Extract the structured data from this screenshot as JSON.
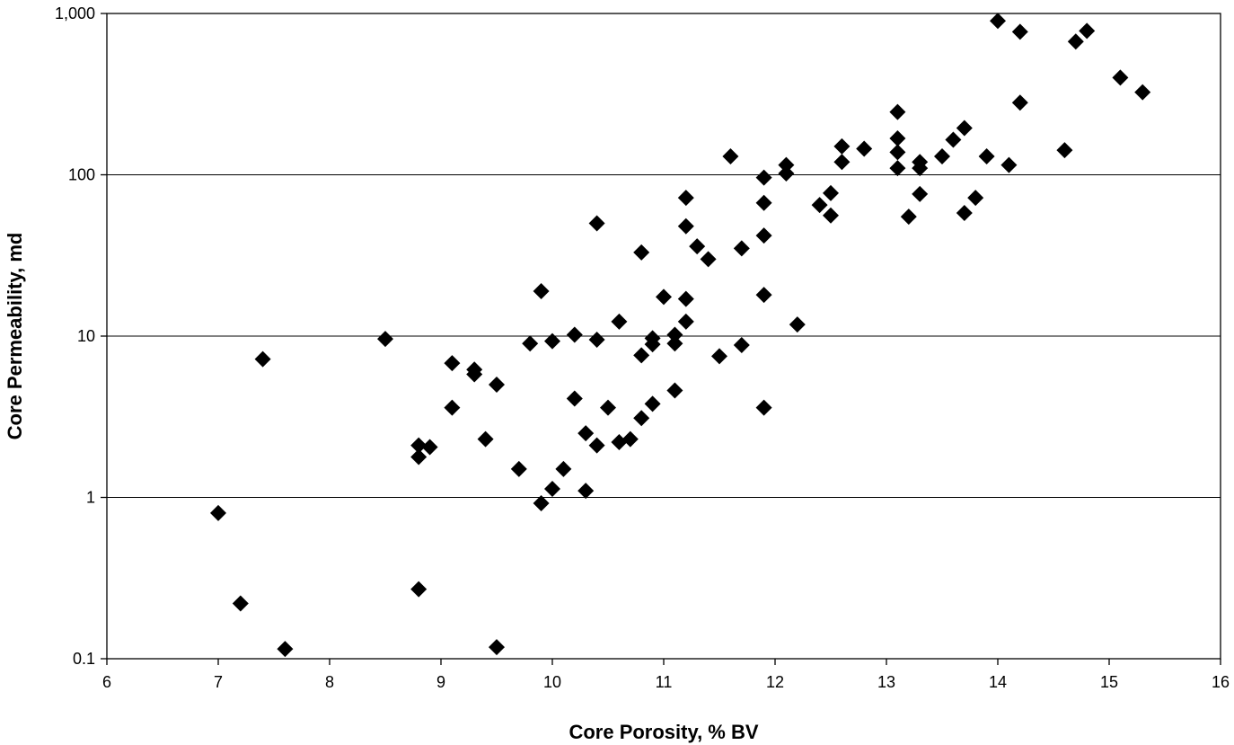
{
  "chart_data": {
    "type": "scatter",
    "title": "",
    "xlabel": "Core Porosity, % BV",
    "ylabel": "Core Permeability, md",
    "xlim": [
      6,
      16
    ],
    "ylim": [
      0.1,
      1000
    ],
    "y_scale": "log",
    "x_ticks": [
      "6",
      "7",
      "8",
      "9",
      "10",
      "11",
      "12",
      "13",
      "14",
      "15",
      "16"
    ],
    "y_ticks": [
      "0.1",
      "1",
      "10",
      "100",
      "1,000"
    ],
    "grid": "horizontal major gridlines",
    "legend": "none",
    "marker": "filled diamond",
    "marker_color": "#000000",
    "series": [
      {
        "points": [
          [
            7.0,
            0.8
          ],
          [
            7.2,
            0.22
          ],
          [
            7.4,
            7.2
          ],
          [
            7.6,
            0.115
          ],
          [
            8.5,
            9.6
          ],
          [
            8.8,
            2.1
          ],
          [
            8.8,
            1.78
          ],
          [
            8.8,
            0.27
          ],
          [
            8.9,
            2.05
          ],
          [
            9.1,
            6.8
          ],
          [
            9.1,
            3.6
          ],
          [
            9.3,
            6.2
          ],
          [
            9.3,
            5.8
          ],
          [
            9.4,
            2.3
          ],
          [
            9.5,
            5.0
          ],
          [
            9.5,
            0.118
          ],
          [
            9.7,
            1.5
          ],
          [
            9.8,
            9.0
          ],
          [
            9.9,
            19.0
          ],
          [
            9.9,
            0.92
          ],
          [
            10.0,
            9.3
          ],
          [
            10.0,
            1.13
          ],
          [
            10.1,
            1.5
          ],
          [
            10.2,
            10.2
          ],
          [
            10.2,
            4.1
          ],
          [
            10.3,
            2.5
          ],
          [
            10.3,
            1.1
          ],
          [
            10.4,
            50.0
          ],
          [
            10.4,
            9.5
          ],
          [
            10.4,
            2.1
          ],
          [
            10.5,
            3.6
          ],
          [
            10.6,
            12.3
          ],
          [
            10.6,
            2.2
          ],
          [
            10.7,
            2.3
          ],
          [
            10.8,
            33.0
          ],
          [
            10.8,
            7.6
          ],
          [
            10.8,
            3.1
          ],
          [
            10.9,
            9.7
          ],
          [
            10.9,
            8.9
          ],
          [
            10.9,
            3.8
          ],
          [
            11.0,
            17.5
          ],
          [
            11.1,
            10.2
          ],
          [
            11.1,
            9.0
          ],
          [
            11.1,
            4.6
          ],
          [
            11.2,
            72.0
          ],
          [
            11.2,
            48.0
          ],
          [
            11.2,
            17.0
          ],
          [
            11.2,
            12.3
          ],
          [
            11.3,
            36.0
          ],
          [
            11.4,
            30.0
          ],
          [
            11.5,
            7.5
          ],
          [
            11.6,
            130.0
          ],
          [
            11.7,
            35.0
          ],
          [
            11.7,
            8.8
          ],
          [
            11.9,
            96.0
          ],
          [
            11.9,
            67.0
          ],
          [
            11.9,
            42.0
          ],
          [
            11.9,
            18.0
          ],
          [
            11.9,
            3.6
          ],
          [
            12.1,
            115.0
          ],
          [
            12.1,
            102.0
          ],
          [
            12.2,
            11.8
          ],
          [
            12.4,
            65.0
          ],
          [
            12.5,
            77.0
          ],
          [
            12.5,
            56.0
          ],
          [
            12.6,
            150.0
          ],
          [
            12.6,
            120.0
          ],
          [
            12.8,
            145.0
          ],
          [
            13.1,
            245.0
          ],
          [
            13.1,
            168.0
          ],
          [
            13.1,
            138.0
          ],
          [
            13.1,
            110.0
          ],
          [
            13.2,
            55.0
          ],
          [
            13.3,
            120.0
          ],
          [
            13.3,
            110.0
          ],
          [
            13.3,
            76.0
          ],
          [
            13.5,
            130.0
          ],
          [
            13.6,
            165.0
          ],
          [
            13.7,
            195.0
          ],
          [
            13.7,
            58.0
          ],
          [
            13.8,
            72.0
          ],
          [
            13.9,
            130.0
          ],
          [
            14.0,
            900.0
          ],
          [
            14.1,
            115.0
          ],
          [
            14.2,
            770.0
          ],
          [
            14.2,
            280.0
          ],
          [
            14.6,
            142.0
          ],
          [
            14.7,
            670.0
          ],
          [
            14.8,
            780.0
          ],
          [
            15.1,
            400.0
          ],
          [
            15.3,
            325.0
          ]
        ]
      }
    ]
  }
}
